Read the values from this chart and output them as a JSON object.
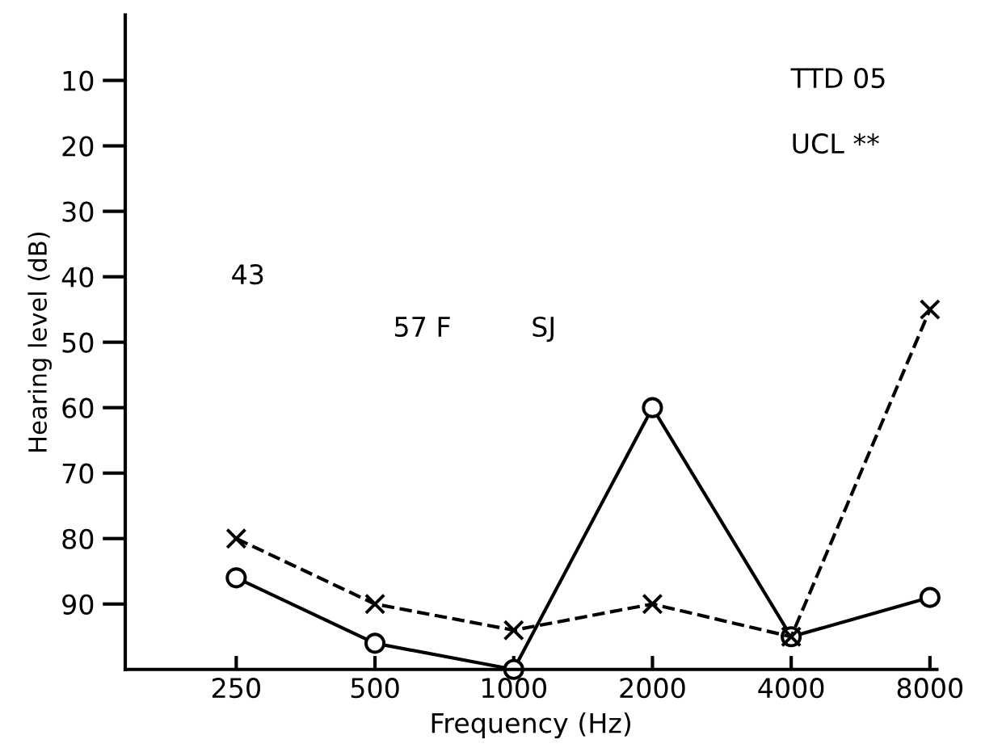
{
  "chart_data": {
    "type": "line",
    "xlabel": "Frequency (Hz)",
    "ylabel": "Hearing level (dB)",
    "categories": [
      "250",
      "500",
      "1000",
      "2000",
      "4000",
      "8000"
    ],
    "series": [
      {
        "color": "#000000",
        "marker": "circle",
        "line_style": "solid",
        "values": [
          86,
          96,
          100,
          60,
          95,
          89
        ]
      },
      {
        "color": "#000000",
        "marker": "cross",
        "line_style": "dashed",
        "values": [
          80,
          90,
          94,
          90,
          95,
          45
        ]
      }
    ],
    "ylim": [
      100,
      0
    ],
    "yticks": [
      10,
      20,
      30,
      40,
      50,
      60,
      70,
      80,
      90
    ],
    "grid": false,
    "legend": false,
    "annotations": [
      "TTD 05",
      "UCL **",
      "43",
      "57 F",
      "SJ"
    ]
  }
}
